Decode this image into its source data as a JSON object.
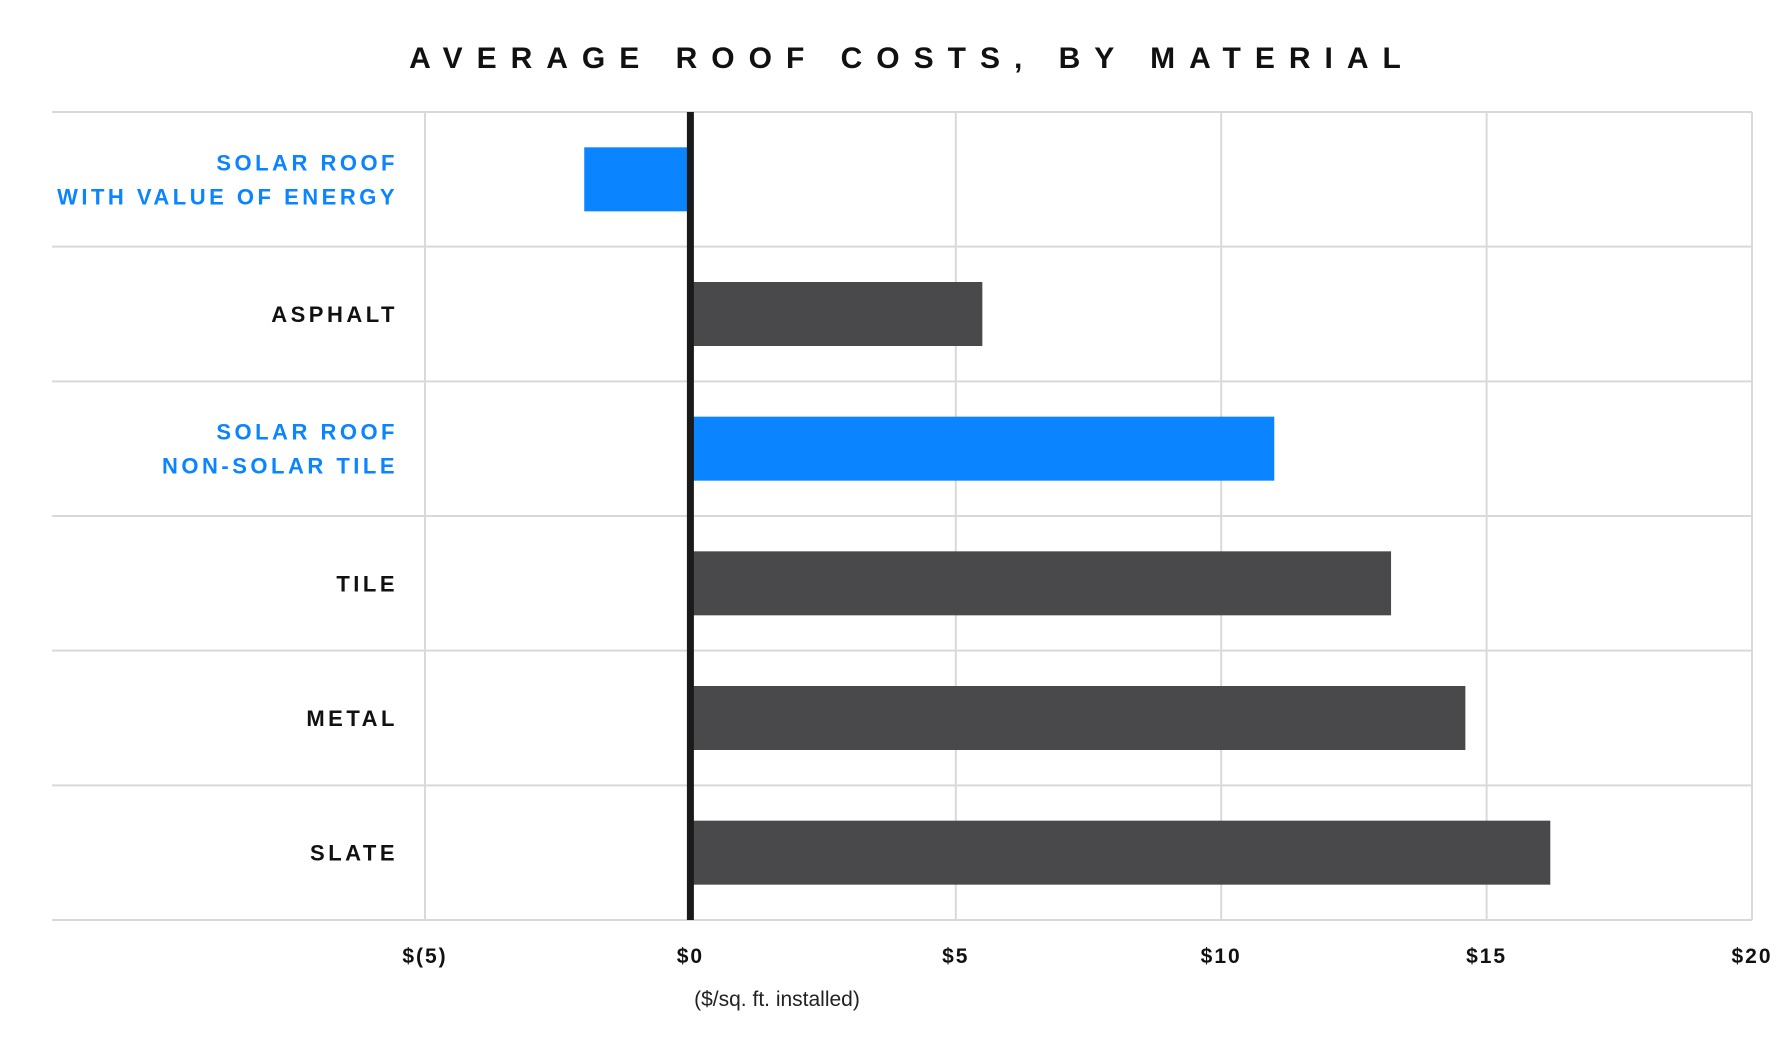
{
  "chart_data": {
    "type": "bar",
    "orientation": "horizontal",
    "title": "AVERAGE ROOF COSTS, BY MATERIAL",
    "xlabel": "($/sq. ft. installed)",
    "ylabel": "",
    "xlim": [
      -5,
      20
    ],
    "x_ticks": [
      -5,
      0,
      5,
      10,
      15,
      20
    ],
    "x_tick_labels": [
      "$(5)",
      "$0",
      "$5",
      "$10",
      "$15",
      "$20"
    ],
    "categories": [
      {
        "lines": [
          "SOLAR ROOF",
          "WITH VALUE OF ENERGY"
        ],
        "highlight": true
      },
      {
        "lines": [
          "ASPHALT"
        ],
        "highlight": false
      },
      {
        "lines": [
          "SOLAR ROOF",
          "NON-SOLAR TILE"
        ],
        "highlight": true
      },
      {
        "lines": [
          "TILE"
        ],
        "highlight": false
      },
      {
        "lines": [
          "METAL"
        ],
        "highlight": false
      },
      {
        "lines": [
          "SLATE"
        ],
        "highlight": false
      }
    ],
    "values": [
      -2,
      5.5,
      11,
      13.2,
      14.6,
      16.2
    ],
    "grid": true,
    "legend": "none",
    "colors": {
      "highlight": "#0a84ff",
      "default": "#49494b",
      "grid": "#d9d9d9",
      "zero_line": "#1a1a1a",
      "text": "#111111"
    }
  }
}
